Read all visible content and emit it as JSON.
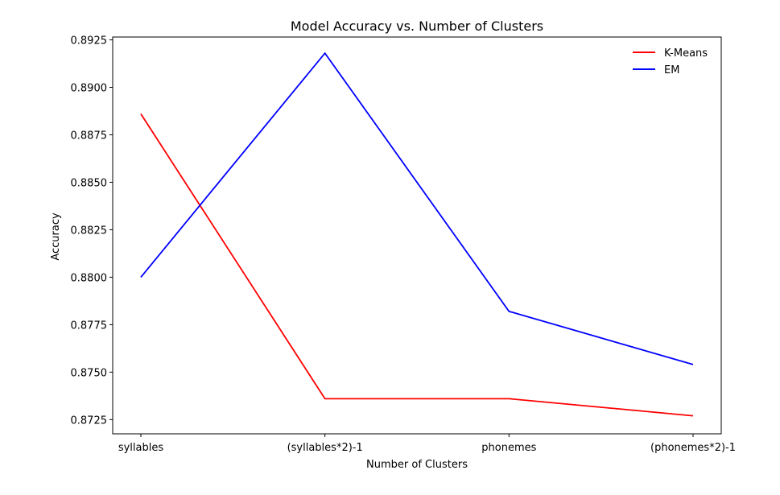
{
  "chart_data": {
    "type": "line",
    "title": "Model Accuracy vs. Number of Clusters",
    "xlabel": "Number of Clusters",
    "ylabel": "Accuracy",
    "categories": [
      "syllables",
      "(syllables*2)-1",
      "phonemes",
      "(phonemes*2)-1"
    ],
    "ylim": [
      0.87175,
      0.89265
    ],
    "yticks": [
      0.8725,
      0.875,
      0.8775,
      0.88,
      0.8825,
      0.885,
      0.8875,
      0.89,
      0.8925
    ],
    "ytick_labels": [
      "0.8725",
      "0.8750",
      "0.8775",
      "0.8800",
      "0.8825",
      "0.8850",
      "0.8875",
      "0.8900",
      "0.8925"
    ],
    "grid": false,
    "legend_position": "top-right",
    "series": [
      {
        "name": "K-Means",
        "color": "#ff0000",
        "values": [
          0.8886,
          0.8736,
          0.8736,
          0.8727
        ]
      },
      {
        "name": "EM",
        "color": "#0000ff",
        "values": [
          0.88,
          0.8918,
          0.8782,
          0.8754
        ]
      }
    ]
  }
}
